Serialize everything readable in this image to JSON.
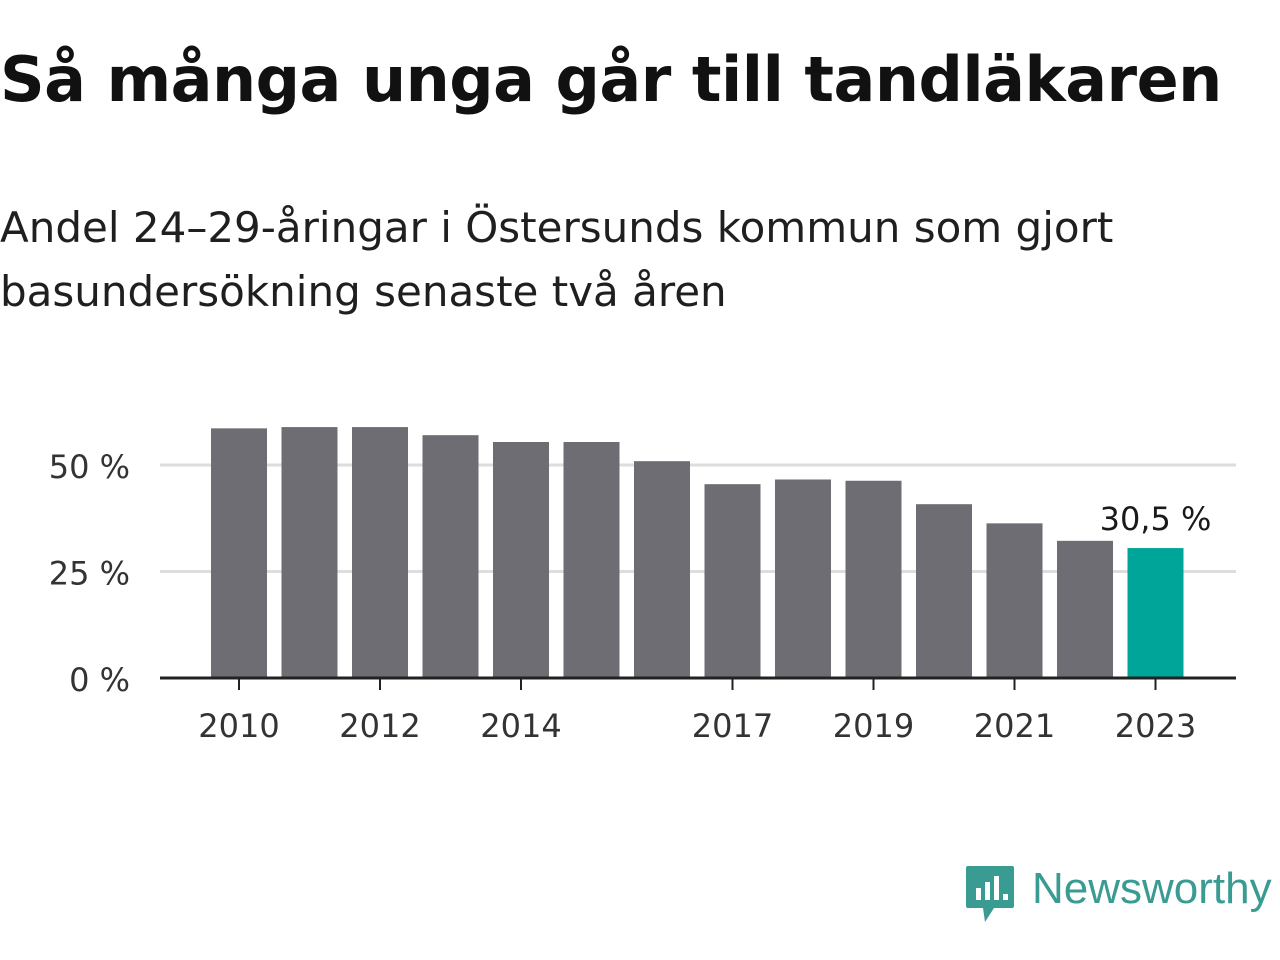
{
  "title": "Så många unga går till tandläkaren",
  "subtitle": "Andel 24–29-åringar i Östersunds kommun som gjort basundersökning senaste två åren",
  "logo": {
    "text": "Newsworthy",
    "icon": "speech-bubble-bar-chart-icon",
    "color": "#3a9b93"
  },
  "chart_data": {
    "type": "bar",
    "categories": [
      "2010",
      "2011",
      "2012",
      "2013",
      "2014",
      "2015",
      "2016",
      "2017",
      "2018",
      "2019",
      "2020",
      "2021",
      "2022",
      "2023"
    ],
    "tick_labels": [
      "2010",
      "2012",
      "2014",
      "2017",
      "2019",
      "2021",
      "2023"
    ],
    "values": [
      58.6,
      58.9,
      58.9,
      57.0,
      55.4,
      55.4,
      50.9,
      45.5,
      46.6,
      46.3,
      40.8,
      36.3,
      32.2,
      30.5
    ],
    "ylim": [
      0,
      60
    ],
    "yticks": [
      {
        "value": 0,
        "label": "0 %"
      },
      {
        "value": 25,
        "label": "25 %"
      },
      {
        "value": 50,
        "label": "50 %"
      }
    ],
    "highlight_index": 13,
    "highlight_label": "30,5 %",
    "colors": {
      "bar": "#6e6d73",
      "highlight": "#00a59a",
      "grid": "#dddddd",
      "axis": "#222222"
    },
    "grid": true,
    "xlabel": "",
    "ylabel": ""
  }
}
